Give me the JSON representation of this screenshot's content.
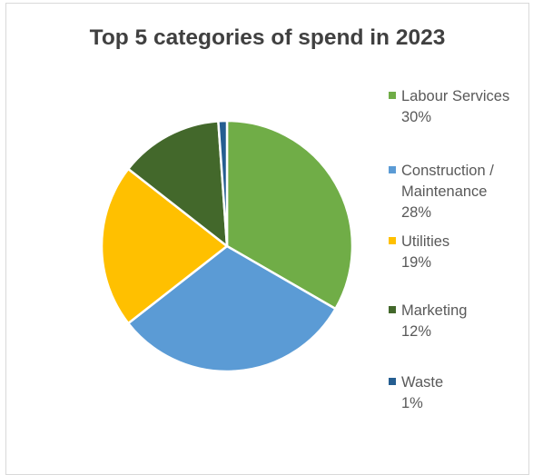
{
  "chart_data": {
    "type": "pie",
    "title": "Top 5 categories of spend in 2023",
    "categories": [
      "Labour Services",
      "Construction / Maintenance",
      "Utilities",
      "Marketing",
      "Waste"
    ],
    "values": [
      30,
      28,
      19,
      12,
      1
    ],
    "label_lines": [
      [
        "Labour Services",
        "30%"
      ],
      [
        "Construction /",
        "Maintenance",
        "28%"
      ],
      [
        "Utilities",
        "19%"
      ],
      [
        "Marketing",
        "12%"
      ],
      [
        "Waste",
        "1%"
      ]
    ],
    "colors": [
      "#70ad47",
      "#5b9bd5",
      "#ffc000",
      "#43682b",
      "#255e91"
    ],
    "legend_position": "right",
    "start_angle": "12 o'clock, clockwise"
  }
}
